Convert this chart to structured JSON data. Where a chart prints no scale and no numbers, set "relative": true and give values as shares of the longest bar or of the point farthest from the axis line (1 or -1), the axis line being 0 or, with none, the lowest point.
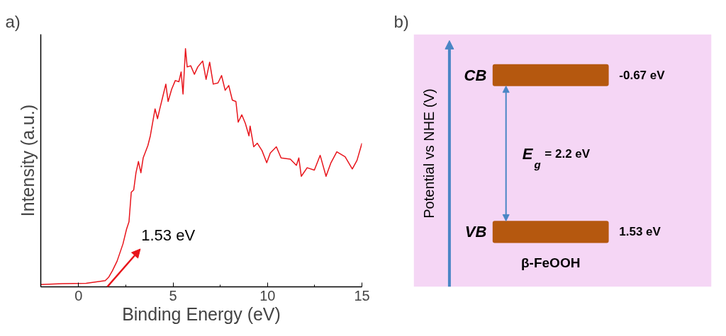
{
  "chart_data": [
    {
      "type": "line",
      "title": "a)",
      "xlabel": "Binding Energy (eV)",
      "ylabel": "Intensity (a.u.)",
      "relative": true,
      "tick_labels": "x",
      "color": "#e8141b",
      "xlim": [
        -2,
        15
      ],
      "xticks": [
        0,
        5,
        10,
        15
      ],
      "x": [
        -2.0,
        -0.86,
        0.4,
        1.41,
        1.6,
        1.79,
        2.04,
        2.35,
        2.54,
        2.67,
        2.79,
        2.92,
        3.04,
        3.17,
        3.3,
        3.42,
        3.67,
        3.8,
        4.05,
        4.18,
        4.3,
        4.43,
        4.62,
        4.74,
        4.93,
        5.12,
        5.31,
        5.43,
        5.53,
        5.66,
        5.75,
        5.94,
        6.13,
        6.31,
        6.57,
        6.75,
        6.94,
        7.13,
        7.38,
        7.57,
        7.76,
        7.95,
        8.14,
        8.33,
        8.45,
        8.64,
        8.83,
        9.02,
        9.08,
        9.27,
        9.46,
        9.71,
        9.96,
        10.15,
        10.47,
        10.72,
        11.21,
        11.53,
        11.66,
        11.79,
        12.1,
        12.48,
        12.79,
        13.1,
        13.36,
        13.67,
        14.11,
        14.49,
        14.74,
        15.0
      ],
      "values": [
        0.01,
        0.013,
        0.015,
        0.026,
        0.041,
        0.067,
        0.108,
        0.18,
        0.242,
        0.273,
        0.397,
        0.407,
        0.479,
        0.526,
        0.479,
        0.541,
        0.593,
        0.634,
        0.747,
        0.706,
        0.747,
        0.789,
        0.851,
        0.778,
        0.83,
        0.866,
        0.861,
        0.902,
        0.809,
        1.0,
        0.923,
        0.928,
        0.892,
        0.923,
        0.948,
        0.871,
        0.943,
        0.851,
        0.856,
        0.887,
        0.825,
        0.845,
        0.784,
        0.778,
        0.691,
        0.722,
        0.686,
        0.634,
        0.675,
        0.588,
        0.603,
        0.572,
        0.521,
        0.562,
        0.588,
        0.541,
        0.536,
        0.51,
        0.541,
        0.464,
        0.5,
        0.49,
        0.552,
        0.464,
        0.521,
        0.567,
        0.546,
        0.495,
        0.531,
        0.603
      ],
      "annotations": [
        "1.53 eV"
      ]
    },
    {
      "type": "other",
      "title": "b)",
      "ylabel": "Potential vs NHE (V)",
      "categories": [
        "CB",
        "VB"
      ],
      "values": [
        -0.67,
        1.53
      ],
      "value_labels": [
        "-0.67 eV",
        "1.53 eV"
      ],
      "annotations": [
        "E$_{g}$ = 2.2 eV",
        "β-FeOOH"
      ]
    }
  ]
}
